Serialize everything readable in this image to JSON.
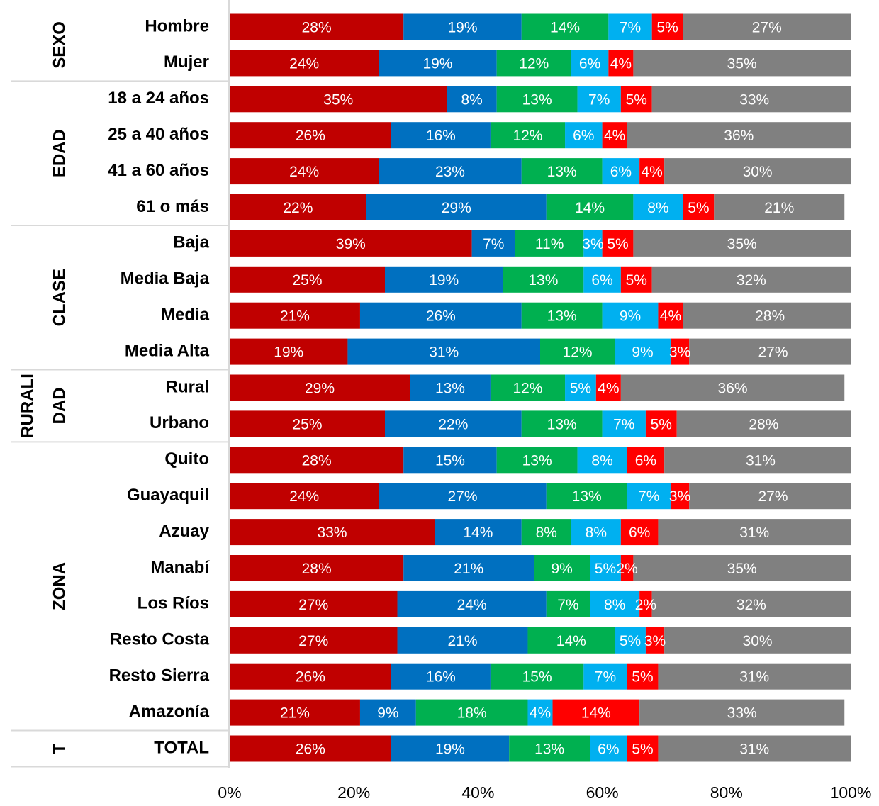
{
  "chart_data": {
    "type": "stacked-bar-horizontal",
    "categories": [
      "Hombre",
      "Mujer",
      "18 a 24 años",
      "25 a 40 años",
      "41 a 60 años",
      "61 o más",
      "Baja",
      "Media Baja",
      "Media",
      "Media Alta",
      "Rural",
      "Urbano",
      "Quito",
      "Guayaquil",
      "Azuay",
      "Manabí",
      "Los Ríos",
      "Resto Costa",
      "Resto Sierra",
      "Amazonía",
      "TOTAL"
    ],
    "groups": [
      {
        "lines": [
          "SEXO"
        ],
        "rows": 2
      },
      {
        "lines": [
          "EDAD"
        ],
        "rows": 4
      },
      {
        "lines": [
          "CLASE"
        ],
        "rows": 4
      },
      {
        "lines": [
          "RURALI",
          "DAD"
        ],
        "rows": 2
      },
      {
        "lines": [
          "ZONA"
        ],
        "rows": 8
      },
      {
        "lines": [
          "T"
        ],
        "rows": 1
      }
    ],
    "series": [
      {
        "color": "#C00000",
        "values": [
          28,
          24,
          35,
          26,
          24,
          22,
          39,
          25,
          21,
          19,
          29,
          25,
          28,
          24,
          33,
          28,
          27,
          27,
          26,
          21,
          26
        ],
        "value_labels": [
          "28%",
          "24%",
          "35%",
          "26%",
          "24%",
          "22%",
          "39%",
          "25%",
          "21%",
          "19%",
          "29%",
          "25%",
          "28%",
          "24%",
          "33%",
          "28%",
          "27%",
          "27%",
          "26%",
          "21%",
          "26%"
        ]
      },
      {
        "color": "#0070C0",
        "values": [
          19,
          19,
          8,
          16,
          23,
          29,
          7,
          19,
          26,
          31,
          13,
          22,
          15,
          27,
          14,
          21,
          24,
          21,
          16,
          9,
          19
        ],
        "value_labels": [
          "19%",
          "19%",
          "8%",
          "16%",
          "23%",
          "29%",
          "7%",
          "19%",
          "26%",
          "31%",
          "13%",
          "22%",
          "15%",
          "27%",
          "14%",
          "21%",
          "24%",
          "21%",
          "16%",
          "9%",
          "19%"
        ]
      },
      {
        "color": "#00B050",
        "values": [
          14,
          12,
          13,
          12,
          13,
          14,
          11,
          13,
          13,
          12,
          12,
          13,
          13,
          13,
          8,
          9,
          7,
          14,
          15,
          18,
          13
        ],
        "value_labels": [
          "14%",
          "12%",
          "13%",
          "12%",
          "13%",
          "14%",
          "11%",
          "13%",
          "13%",
          "12%",
          "12%",
          "13%",
          "13%",
          "13%",
          "8%",
          "9%",
          "7%",
          "14%",
          "15%",
          "18%",
          "13%"
        ]
      },
      {
        "color": "#00B0F0",
        "values": [
          7,
          6,
          7,
          6,
          6,
          8,
          3,
          6,
          9,
          9,
          5,
          7,
          8,
          7,
          8,
          5,
          8,
          5,
          7,
          4,
          6
        ],
        "value_labels": [
          "7%",
          "6%",
          "7%",
          "6%",
          "6%",
          "8%",
          "3%",
          "6%",
          "9%",
          "9%",
          "5%",
          "7%",
          "8%",
          "7%",
          "8%",
          "5%",
          "8%",
          "5%",
          "7%",
          "4%",
          "6%"
        ]
      },
      {
        "color": "#FF0000",
        "values": [
          5,
          4,
          5,
          4,
          4,
          5,
          5,
          5,
          4,
          3,
          4,
          5,
          6,
          3,
          6,
          2,
          2,
          3,
          5,
          14,
          5
        ],
        "value_labels": [
          "5%",
          "4%",
          "5%",
          "4%",
          "4%",
          "5%",
          "5%",
          "5%",
          "4%",
          "3%",
          "4%",
          "5%",
          "6%",
          "3%",
          "6%",
          "2%",
          "2%",
          "3%",
          "5%",
          "14%",
          "5%"
        ]
      },
      {
        "color": "#808080",
        "values": [
          27,
          35,
          33,
          36,
          30,
          21,
          35,
          32,
          28,
          27,
          36,
          28,
          31,
          27,
          31,
          35,
          32,
          30,
          31,
          33,
          31
        ],
        "value_labels": [
          "27%",
          "35%",
          "33%",
          "36%",
          "30%",
          "21%",
          "35%",
          "32%",
          "28%",
          "27%",
          "36%",
          "28%",
          "31%",
          "27%",
          "31%",
          "35%",
          "32%",
          "30%",
          "31%",
          "33%",
          "31%"
        ]
      }
    ],
    "xlim": [
      0,
      100
    ],
    "xticks": [
      {
        "value": 0,
        "label": "0%"
      },
      {
        "value": 20,
        "label": "20%"
      },
      {
        "value": 40,
        "label": "40%"
      },
      {
        "value": 60,
        "label": "60%"
      },
      {
        "value": 80,
        "label": "80%"
      },
      {
        "value": 100,
        "label": "100%"
      }
    ]
  }
}
